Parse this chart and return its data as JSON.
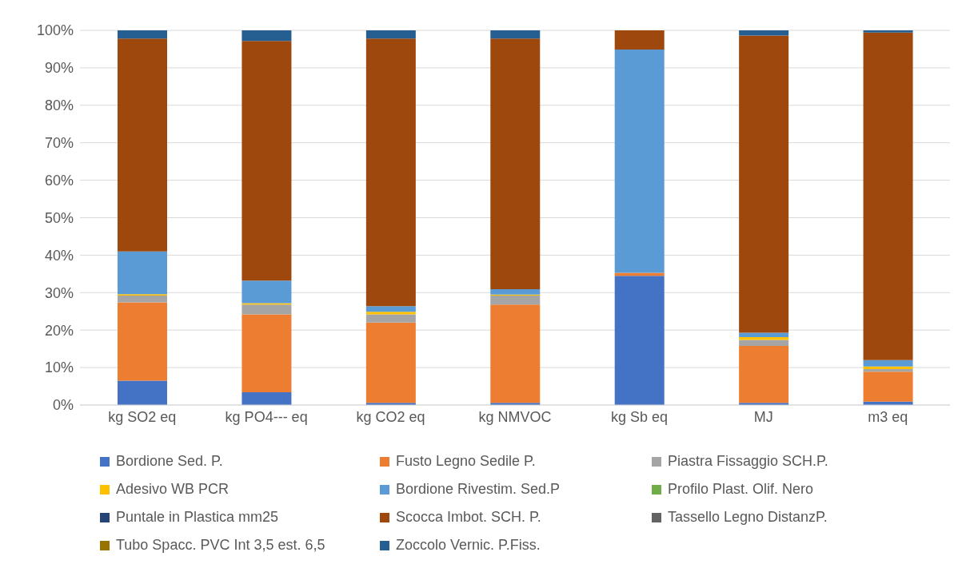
{
  "chart_data": {
    "type": "bar",
    "stacked": true,
    "categories": [
      "kg SO2 eq",
      "kg PO4--- eq",
      "kg CO2 eq",
      "kg NMVOC",
      "kg Sb eq",
      "MJ",
      "m3 eq"
    ],
    "series": [
      {
        "name": "Bordione Sed. P.",
        "color": "#4472c4",
        "values": [
          6.5,
          3.4,
          0.6,
          0.6,
          34.5,
          0.6,
          0.9
        ]
      },
      {
        "name": "Fusto Legno Sedile P.",
        "color": "#ed7d31",
        "values": [
          20.9,
          20.8,
          21.4,
          26.2,
          0.8,
          15.2,
          8.0
        ]
      },
      {
        "name": "Piastra Fissaggio SCH.P.",
        "color": "#a5a5a5",
        "values": [
          1.8,
          2.6,
          2.2,
          2.4,
          0,
          1.6,
          0.7
        ]
      },
      {
        "name": "Adesivo WB PCR",
        "color": "#ffc000",
        "values": [
          0.4,
          0.4,
          0.7,
          0.3,
          0,
          0.7,
          0.7
        ]
      },
      {
        "name": "Bordione Rivestim. Sed.P",
        "color": "#5b9bd5",
        "values": [
          11.4,
          6.0,
          1.5,
          1.4,
          59.6,
          1.2,
          1.7
        ]
      },
      {
        "name": "Profilo Plast. Olif. Nero",
        "color": "#70ad47",
        "values": [
          0,
          0,
          0,
          0,
          0,
          0,
          0
        ]
      },
      {
        "name": "Puntale in Plastica mm25",
        "color": "#264478",
        "values": [
          0,
          0,
          0,
          0,
          0,
          0,
          0
        ]
      },
      {
        "name": "Scocca Imbot. SCH. P.",
        "color": "#9e480e",
        "values": [
          56.8,
          64.0,
          71.4,
          66.9,
          5.1,
          79.3,
          87.4
        ]
      },
      {
        "name": "Tassello Legno DistanzP.",
        "color": "#636363",
        "values": [
          0,
          0,
          0,
          0,
          0,
          0,
          0
        ]
      },
      {
        "name": "Tubo Spacc. PVC Int 3,5 est. 6,5",
        "color": "#997300",
        "values": [
          0,
          0,
          0,
          0,
          0,
          0,
          0
        ]
      },
      {
        "name": "Zoccolo Vernic. P.Fiss.",
        "color": "#255e91",
        "values": [
          2.2,
          2.8,
          2.2,
          2.2,
          0,
          1.4,
          0.6
        ]
      }
    ],
    "ylim": [
      0,
      100
    ],
    "yticks": [
      {
        "value": 0,
        "label": "0%"
      },
      {
        "value": 10,
        "label": "10%"
      },
      {
        "value": 20,
        "label": "20%"
      },
      {
        "value": 30,
        "label": "30%"
      },
      {
        "value": 40,
        "label": "40%"
      },
      {
        "value": 50,
        "label": "50%"
      },
      {
        "value": 60,
        "label": "60%"
      },
      {
        "value": 70,
        "label": "70%"
      },
      {
        "value": 80,
        "label": "80%"
      },
      {
        "value": 90,
        "label": "90%"
      },
      {
        "value": 100,
        "label": "100%"
      }
    ],
    "grid": "y",
    "legend": "bottom"
  }
}
